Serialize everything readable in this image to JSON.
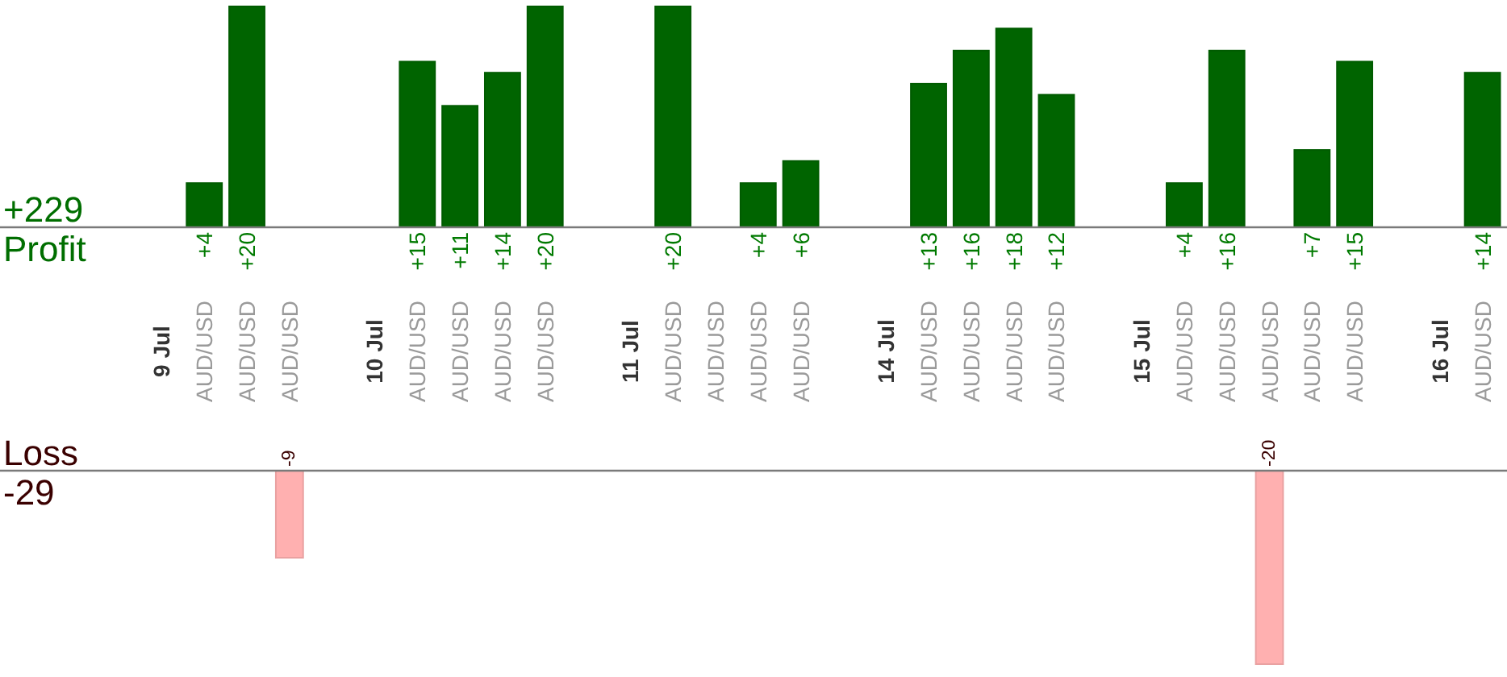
{
  "chart_data": [
    {
      "type": "bar",
      "ylabel": "Profit",
      "annotations": [
        "+229"
      ],
      "categories": [
        "9 Jul",
        "AUD/USD",
        "AUD/USD",
        "AUD/USD",
        null,
        "10 Jul",
        "AUD/USD",
        "AUD/USD",
        "AUD/USD",
        "AUD/USD",
        null,
        "11 Jul",
        "AUD/USD",
        "AUD/USD",
        "AUD/USD",
        "AUD/USD",
        null,
        "14 Jul",
        "AUD/USD",
        "AUD/USD",
        "AUD/USD",
        "AUD/USD",
        null,
        "15 Jul",
        "AUD/USD",
        "AUD/USD",
        "AUD/USD",
        "AUD/USD",
        "AUD/USD",
        null,
        "16 Jul",
        "AUD/USD"
      ],
      "values": [
        null,
        4,
        20,
        null,
        null,
        null,
        15,
        11,
        14,
        20,
        null,
        null,
        20,
        null,
        4,
        6,
        null,
        null,
        13,
        16,
        18,
        12,
        null,
        null,
        4,
        16,
        null,
        7,
        15,
        null,
        null,
        14
      ],
      "value_labels": [
        null,
        "+4",
        "+20",
        null,
        null,
        null,
        "+15",
        "+11",
        "+14",
        "+20",
        null,
        null,
        "+20",
        null,
        "+4",
        "+6",
        null,
        null,
        "+13",
        "+16",
        "+18",
        "+12",
        null,
        null,
        "+4",
        "+16",
        null,
        "+7",
        "+15",
        null,
        null,
        "+14"
      ],
      "color": "#006400",
      "ylim": [
        0,
        20
      ],
      "tick_labels": "x"
    },
    {
      "type": "bar",
      "ylabel": "Loss",
      "annotations": [
        "-29"
      ],
      "categories": [
        null,
        null,
        null,
        null,
        null,
        null,
        null,
        null,
        null,
        null,
        null,
        null,
        null,
        null,
        null,
        null,
        null,
        null,
        null,
        null,
        null,
        null,
        null,
        null,
        null,
        null,
        null,
        null,
        null,
        null,
        null,
        null
      ],
      "values": [
        null,
        null,
        null,
        -9,
        null,
        null,
        null,
        null,
        null,
        null,
        null,
        null,
        null,
        null,
        null,
        null,
        null,
        null,
        null,
        null,
        null,
        null,
        null,
        null,
        null,
        null,
        -20,
        null,
        null,
        null,
        null,
        null
      ],
      "value_labels": [
        null,
        null,
        null,
        "-9",
        null,
        null,
        null,
        null,
        null,
        null,
        null,
        null,
        null,
        null,
        null,
        null,
        null,
        null,
        null,
        null,
        null,
        null,
        null,
        null,
        null,
        null,
        "-20",
        null,
        null,
        null,
        null,
        null
      ],
      "color": "#ffb0b0",
      "ylim": [
        -20,
        0
      ],
      "tick_labels": false
    }
  ]
}
